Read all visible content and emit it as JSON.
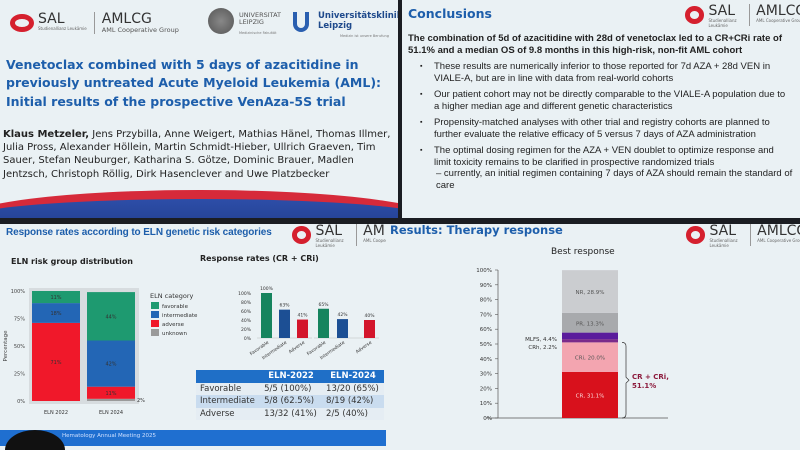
{
  "logos": {
    "sal": "SAL",
    "sal_sub": "Studienallianz Leukämie",
    "amlcg": "AMLCG",
    "amlcg_sub": "AML Cooperative Group",
    "uni": "UNIVERSITAT LEIPZIG",
    "uni_sub": "Medizinische Fakultät",
    "klinik": "Universitätsklinikum Leipzig",
    "klinik_sub": "Medizin ist unsere Berufung"
  },
  "title_slide": {
    "title_line1": "Venetoclax combined with 5 days of azacitidine in",
    "title_line2": "previously untreated Acute Myeloid Leukemia (AML):",
    "subtitle": "Initial results of the prospective VenAza-5S trial",
    "lead_author": "Klaus Metzeler,",
    "authors": " Jens Przybilla, Anne Weigert, Mathias Hänel, Thomas Illmer, Julia Pross, Alexander Höllein, Martin Schmidt-Hieber, Ullrich Graeven, Tim Sauer, Stefan Neuburger, Katharina S. Götze, Dominic Brauer, Madlen Jentzsch, Christoph Röllig, Dirk Hasenclever and Uwe Platzbecker"
  },
  "conclusions_slide": {
    "title": "Conclusions",
    "lead": "The combination of 5d of azacitidine with 28d of venetoclax led to a CR+CRi rate of 51.1% and a median OS of 9.8 months in this high-risk, non-fit AML cohort",
    "bullets": [
      "These results are numerically inferior to those reported for 7d AZA + 28d VEN in VIALE-A, but are in line with data from real-world cohorts",
      "Our patient cohort may not be directly comparable to the VIALE-A population due to a higher median age and different genetic characteristics",
      "Propensity-matched analyses with other trial and registry cohorts are planned to further evaluate the relative efficacy of 5 versus 7 days of AZA administration",
      "The optimal dosing regimen for the AZA + VEN doublet to optimize response and limit toxicity remains to be clarified in prospective randomized trials"
    ],
    "sub_bullet": "– currently, an initial regimen containing 7 days of AZA should remain the standard of care"
  },
  "eln_slide": {
    "title": "Response rates according to ELN genetic risk categories",
    "footer": "Hematology Annual Meeting 2025",
    "table": {
      "headers": [
        "",
        "ELN-2022",
        "ELN-2024"
      ],
      "rows": [
        [
          "Favorable",
          "5/5    (100%)",
          "13/20  (65%)"
        ],
        [
          "Intermediate",
          "5/8    (62.5%)",
          "8/19    (42%)"
        ],
        [
          "Adverse",
          "13/32 (41%)",
          "2/5      (40%)"
        ]
      ]
    }
  },
  "response_slide": {
    "title": "Results: Therapy response"
  },
  "chart_data": [
    {
      "type": "bar",
      "stacked": true,
      "title": "ELN risk group distribution",
      "ylabel": "Percentage",
      "categories": [
        "ELN 2022",
        "ELN 2024"
      ],
      "yticks": [
        "0%",
        "25%",
        "50%",
        "75%",
        "100%"
      ],
      "ylim": [
        0,
        100
      ],
      "legend_title": "ELN category",
      "legend": "right",
      "series": [
        {
          "name": "unknown",
          "color": "#9a9a9a",
          "values": [
            0,
            2
          ],
          "labels": [
            "",
            "2%"
          ]
        },
        {
          "name": "adverse",
          "color": "#f0182a",
          "values": [
            71,
            11
          ],
          "labels": [
            "71%",
            "11%"
          ]
        },
        {
          "name": "intermediate",
          "color": "#2366b5",
          "values": [
            18,
            42
          ],
          "labels": [
            "18%",
            "42%"
          ]
        },
        {
          "name": "favorable",
          "color": "#1e9a70",
          "values": [
            11,
            44
          ],
          "labels": [
            "11%",
            "44%"
          ]
        }
      ],
      "legend_order": [
        "favorable",
        "intermediate",
        "adverse",
        "unknown"
      ]
    },
    {
      "type": "bar",
      "title": "Response rates (CR + CRi)",
      "ylim": [
        0,
        100
      ],
      "yticks": [
        "0%",
        "20%",
        "40%",
        "60%",
        "80%",
        "100%"
      ],
      "groups": [
        "ELN-2022",
        "ELN-2024"
      ],
      "categories": [
        "Favorable",
        "Intermediate",
        "Adverse"
      ],
      "colors": [
        "#16845e",
        "#1c4f94",
        "#d3152b"
      ],
      "values": [
        [
          100,
          63,
          41
        ],
        [
          65,
          42,
          40
        ]
      ],
      "labels": [
        [
          "100%",
          "63%",
          "41%"
        ],
        [
          "65%",
          "42%",
          "40%"
        ]
      ]
    },
    {
      "type": "bar",
      "stacked": true,
      "title": "Best response",
      "ylim": [
        0,
        100
      ],
      "yticks": [
        "0%",
        "10%",
        "20%",
        "30%",
        "40%",
        "50%",
        "60%",
        "70%",
        "80%",
        "90%",
        "100%"
      ],
      "segments": [
        {
          "name": "CR",
          "value": 31.1,
          "label": "CR, 31.1%",
          "color": "#d8111c"
        },
        {
          "name": "CRi",
          "value": 20.0,
          "label": "CRi, 20.0%",
          "color": "#f3a5b0"
        },
        {
          "name": "CRh",
          "value": 2.2,
          "label": "CRh, 2.2%",
          "color": "#7a2a8a"
        },
        {
          "name": "MLFS",
          "value": 4.4,
          "label": "MLFS, 4.4%",
          "color": "#5a1c9c"
        },
        {
          "name": "PR",
          "value": 13.3,
          "label": "PR, 13.3%",
          "color": "#a8aaad"
        },
        {
          "name": "NR",
          "value": 28.9,
          "label": "NR, 28.9%",
          "color": "#cbcdd0"
        }
      ],
      "annotation": {
        "line1": "CR + CRi,",
        "line2": "51.1%",
        "color": "#8c1a3c"
      }
    }
  ]
}
